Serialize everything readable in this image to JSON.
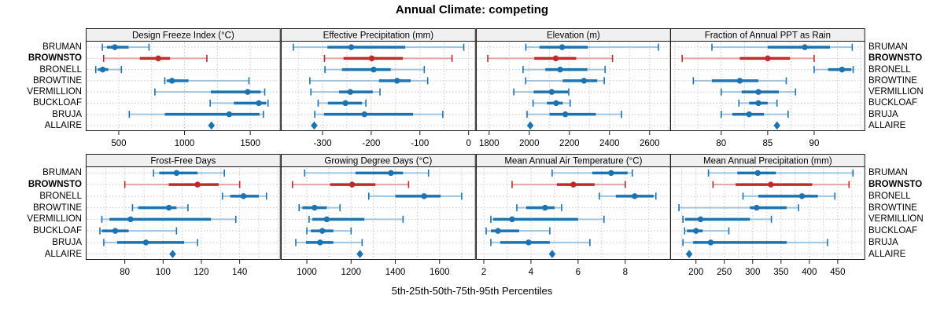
{
  "chart_data": {
    "type": "dotplot-percentile-intervals",
    "title": "Annual Climate: competing",
    "xlabel": "5th-25th-50th-75th-95th Percentiles",
    "percentile_labels": [
      "5th",
      "25th",
      "50th",
      "75th",
      "95th"
    ],
    "stations": [
      "BRUMAN",
      "BROWNSTO",
      "BRONELL",
      "BROWTINE",
      "VERMILLION",
      "BUCKLOAF",
      "BRUJA",
      "ALLAIRE"
    ],
    "highlight_station": "BROWNSTO",
    "single_value_station": "ALLAIRE",
    "legend_position": "none",
    "grid": true,
    "colors": {
      "series": "#1c73b1",
      "series_light": "#9fc6e0",
      "highlight": "#bf2b2b",
      "highlight_light": "#e2a5a5",
      "grid": "#c9c9c9",
      "panel_header_bg": "#f0f0f0",
      "border": "#1a1a1a",
      "text": "#000000"
    },
    "panels": [
      {
        "title": "Design Freeze Index (°C)",
        "grid_row": 0,
        "xlim": [
          255,
          1725
        ],
        "ticks": [
          500,
          1000,
          1500
        ],
        "series": {
          "BRUMAN": [
            375,
            410,
            470,
            575,
            730
          ],
          "BROWNSTO": [
            385,
            660,
            800,
            890,
            1170
          ],
          "BRONELL": [
            325,
            342,
            378,
            420,
            520
          ],
          "BROWTINE": [
            850,
            866,
            905,
            1030,
            1490
          ],
          "VERMILLION": [
            775,
            1200,
            1480,
            1580,
            1610
          ],
          "BUCKLOAF": [
            1195,
            1375,
            1565,
            1620,
            1635
          ],
          "BRUJA": [
            580,
            850,
            1340,
            1570,
            1600
          ],
          "ALLAIRE": 1205
        }
      },
      {
        "title": "Effective Precipitation (mm)",
        "grid_row": 0,
        "xlim": [
          -384,
          13
        ],
        "ticks": [
          -300,
          -200,
          -100,
          0
        ],
        "series": {
          "BRUMAN": [
            -360,
            -290,
            -241,
            -130,
            -10
          ],
          "BROWNSTO": [
            -296,
            -257,
            -199,
            -135,
            -34
          ],
          "BRONELL": [
            -295,
            -260,
            -195,
            -160,
            -91
          ],
          "BROWTINE": [
            -326,
            -184,
            -147,
            -119,
            -84
          ],
          "VERMILLION": [
            -324,
            -266,
            -243,
            -197,
            -182
          ],
          "BUCKLOAF": [
            -309,
            -289,
            -253,
            -219,
            -211
          ],
          "BRUJA": [
            -316,
            -297,
            -214,
            -114,
            -53
          ],
          "ALLAIRE": -317
        }
      },
      {
        "title": "Elevation (m)",
        "grid_row": 0,
        "xlim": [
          1738,
          2702
        ],
        "ticks": [
          1800,
          2000,
          2200,
          2400,
          2600
        ],
        "series": {
          "BRUMAN": [
            1983,
            2051,
            2164,
            2292,
            2644
          ],
          "BROWNSTO": [
            1793,
            2025,
            2132,
            2234,
            2415
          ],
          "BRONELL": [
            1969,
            2080,
            2154,
            2290,
            2378
          ],
          "BROWTINE": [
            1982,
            2167,
            2273,
            2339,
            2374
          ],
          "VERMILLION": [
            1923,
            2022,
            2112,
            2193,
            2197
          ],
          "BUCKLOAF": [
            2019,
            2088,
            2134,
            2167,
            2204
          ],
          "BRUJA": [
            1989,
            2101,
            2180,
            2332,
            2460
          ],
          "ALLAIRE": 2005
        }
      },
      {
        "title": "Fraction of Annual PPT as Rain",
        "grid_row": 0,
        "xlim": [
          74.6,
          95.4
        ],
        "ticks": [
          80,
          85,
          90
        ],
        "series": {
          "BRUMAN": [
            79,
            85,
            89,
            91.7,
            94.1
          ],
          "BROWNSTO": [
            75.8,
            82,
            85,
            87.4,
            90
          ],
          "BRONELL": [
            90,
            91.5,
            93,
            94,
            94.2
          ],
          "BROWTINE": [
            77,
            79,
            82,
            84,
            87
          ],
          "VERMILLION": [
            80,
            82.2,
            84,
            86.2,
            88
          ],
          "BUCKLOAF": [
            81.9,
            83,
            84,
            85,
            86
          ],
          "BRUJA": [
            80,
            81.2,
            83,
            84.6,
            87.2
          ],
          "ALLAIRE": 86
        }
      },
      {
        "title": "Frost-Free Days",
        "grid_row": 1,
        "xlim": [
          60,
          161
        ],
        "ticks": [
          80,
          100,
          120,
          140
        ],
        "series": {
          "BRUMAN": [
            95,
            98,
            107,
            118,
            132
          ],
          "BROWNSTO": [
            80,
            103,
            118,
            129,
            140
          ],
          "BRONELL": [
            131,
            135,
            142,
            150,
            154
          ],
          "BROWTINE": [
            84,
            87,
            103,
            107,
            113
          ],
          "VERMILLION": [
            68,
            72,
            83,
            125,
            138
          ],
          "BUCKLOAF": [
            67,
            68,
            75,
            82,
            107
          ],
          "BRUJA": [
            69,
            76,
            91,
            111,
            118
          ],
          "ALLAIRE": 105
        }
      },
      {
        "title": "Growing Degree Days (°C)",
        "grid_row": 1,
        "xlim": [
          886,
          1760
        ],
        "ticks": [
          1000,
          1200,
          1400,
          1600
        ],
        "series": {
          "BRUMAN": [
            990,
            1220,
            1380,
            1435,
            1550
          ],
          "BROWNSTO": [
            935,
            1105,
            1205,
            1310,
            1460
          ],
          "BRONELL": [
            1280,
            1400,
            1530,
            1605,
            1700
          ],
          "BROWTINE": [
            965,
            980,
            1035,
            1090,
            1150
          ],
          "VERMILLION": [
            1010,
            1025,
            1090,
            1260,
            1435
          ],
          "BUCKLOAF": [
            1000,
            1018,
            1070,
            1120,
            1200
          ],
          "BRUJA": [
            950,
            996,
            1060,
            1120,
            1250
          ],
          "ALLAIRE": 1240
        }
      },
      {
        "title": "Mean Annual Air Temperature (°C)",
        "grid_row": 1,
        "xlim": [
          1.7,
          9.9
        ],
        "ticks": [
          2,
          4,
          6,
          8
        ],
        "series": {
          "BRUMAN": [
            4.9,
            6.6,
            7.4,
            8.1,
            8.3
          ],
          "BROWNSTO": [
            3.2,
            5.1,
            5.8,
            6.7,
            8.0
          ],
          "BRONELL": [
            6.9,
            7.6,
            8.4,
            9.2,
            9.3
          ],
          "BROWTINE": [
            3.4,
            3.8,
            4.6,
            5.0,
            5.3
          ],
          "VERMILLION": [
            2.3,
            2.4,
            3.2,
            6.0,
            7.1
          ],
          "BUCKLOAF": [
            2.1,
            2.3,
            2.6,
            3.5,
            4.8
          ],
          "BRUJA": [
            2.3,
            2.7,
            3.9,
            4.8,
            6.5
          ],
          "ALLAIRE": 4.9
        }
      },
      {
        "title": "Mean Annual Precipitation (mm)",
        "grid_row": 1,
        "xlim": [
          156,
          497
        ],
        "ticks": [
          200,
          250,
          300,
          350,
          400,
          450
        ],
        "series": {
          "BRUMAN": [
            222,
            273,
            309,
            341,
            477
          ],
          "BROWNSTO": [
            230,
            270,
            332,
            405,
            470
          ],
          "BRONELL": [
            283,
            310,
            387,
            415,
            445
          ],
          "BROWTINE": [
            170,
            295,
            307,
            360,
            381
          ],
          "VERMILLION": [
            177,
            181,
            208,
            295,
            333
          ],
          "BUCKLOAF": [
            180,
            184,
            200,
            212,
            258
          ],
          "BRUJA": [
            177,
            195,
            226,
            360,
            432
          ],
          "ALLAIRE": 188
        }
      }
    ]
  }
}
